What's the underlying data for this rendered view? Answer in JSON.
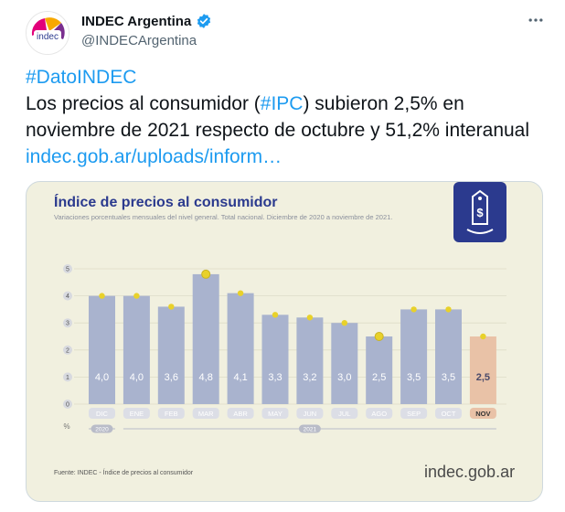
{
  "account": {
    "name": "INDEC Argentina",
    "handle": "@INDECArgentina",
    "avatar_text": "indec",
    "verified_icon": "verified-badge-icon",
    "more_icon": "more-horizontal-icon"
  },
  "tweet": {
    "hashtag": "#DatoINDEC",
    "text_before": "Los precios al consumidor (",
    "text_hashtag": "#IPC",
    "text_after": ") subieron 2,5% en noviembre de 2021 respecto de octubre y 51,2% interanual ",
    "link": "indec.gob.ar/uploads/inform…"
  },
  "colors": {
    "accent": "#1d9bf0",
    "bar": "#a9b3ce",
    "bar_highlight": "#e9c2a7",
    "dot": "#e8d12a",
    "title": "#2b3a8e",
    "card_bg": "#f1f0df"
  },
  "card": {
    "title": "Índice de precios al consumidor",
    "subtitle": "Variaciones porcentuales mensuales del nivel general. Total nacional. Diciembre de 2020 a noviembre de 2021.",
    "source": "Fuente: INDEC - Índice de precios al consumidor",
    "brand": "indec.gob.ar",
    "brand_icon": "price-tag-dollar-icon"
  },
  "chart_data": {
    "type": "bar",
    "title": "Índice de precios al consumidor",
    "subtitle": "Variaciones porcentuales mensuales del nivel general. Total nacional. Diciembre de 2020 a noviembre de 2021.",
    "ylabel": "%",
    "ylim": [
      0,
      5
    ],
    "yticks": [
      "0",
      "1",
      "2",
      "3",
      "4",
      "5"
    ],
    "categories": [
      "DIC",
      "ENE",
      "FEB",
      "MAR",
      "ABR",
      "MAY",
      "JUN",
      "JUL",
      "AGO",
      "SEP",
      "OCT",
      "NOV"
    ],
    "values": [
      4.0,
      4.0,
      3.6,
      4.8,
      4.1,
      3.3,
      3.2,
      3.0,
      2.5,
      3.5,
      3.5,
      2.5
    ],
    "labels": [
      "4,0",
      "4,0",
      "3,6",
      "4,8",
      "4,1",
      "3,3",
      "3,2",
      "3,0",
      "2,5",
      "3,5",
      "3,5",
      "2,5"
    ],
    "highlight_index": 11,
    "years": [
      {
        "label": "2020",
        "start": 0,
        "end": 0
      },
      {
        "label": "2021",
        "start": 1,
        "end": 11
      }
    ]
  }
}
